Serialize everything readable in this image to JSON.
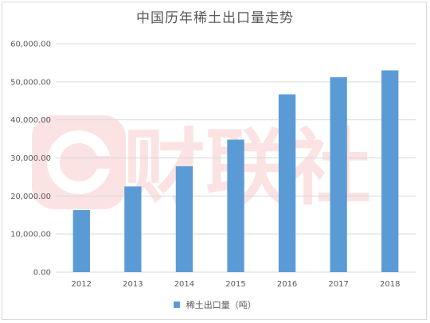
{
  "chart_data": {
    "type": "bar",
    "title": "中国历年稀土出口量走势",
    "categories": [
      "2012",
      "2013",
      "2014",
      "2015",
      "2016",
      "2017",
      "2018"
    ],
    "series": [
      {
        "name": "稀土出口量（吨）",
        "values": [
          16300,
          22500,
          27800,
          34800,
          46700,
          51200,
          53000
        ]
      }
    ],
    "ylim": [
      0,
      60000
    ],
    "yticks": [
      "0.00",
      "10,000.00",
      "20,000.00",
      "30,000.00",
      "40,000.00",
      "50,000.00",
      "60,000.00"
    ],
    "ytick_values": [
      0,
      10000,
      20000,
      30000,
      40000,
      50000,
      60000
    ],
    "grid": true,
    "legend_position": "bottom",
    "bar_color": "#5b9bd5",
    "grid_color": "#d9d9d9"
  },
  "watermark": {
    "text": "财联社",
    "color": "#f8d9d9"
  }
}
